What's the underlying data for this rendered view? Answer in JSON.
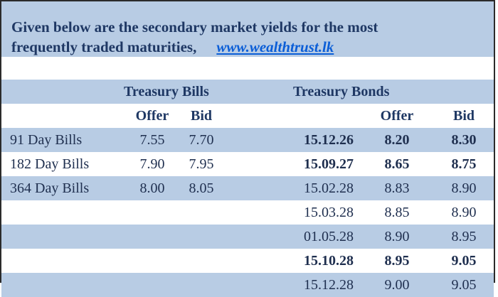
{
  "header": {
    "line1": "Given below are the secondary market yields for the most",
    "line2": "frequently traded maturities,",
    "link": "www.wealthtrust.lk"
  },
  "groups": {
    "bills": "Treasury Bills",
    "bonds": "Treasury Bonds"
  },
  "columns": {
    "bills_offer": "Offer",
    "bills_bid": "Bid",
    "bonds_offer": "Offer",
    "bonds_bid": "Bid"
  },
  "rows": [
    {
      "bill": "91 Day Bills",
      "bill_offer": "7.55",
      "bill_bid": "7.70",
      "bond": "15.12.26",
      "bond_offer": "8.20",
      "bond_bid": "8.30"
    },
    {
      "bill": "182 Day Bills",
      "bill_offer": "7.90",
      "bill_bid": "7.95",
      "bond": "15.09.27",
      "bond_offer": "8.65",
      "bond_bid": "8.75"
    },
    {
      "bill": "364 Day Bills",
      "bill_offer": "8.00",
      "bill_bid": "8.05",
      "bond": "15.02.28",
      "bond_offer": "8.83",
      "bond_bid": "8.90"
    },
    {
      "bill": "",
      "bill_offer": "",
      "bill_bid": "",
      "bond": "15.03.28",
      "bond_offer": "8.85",
      "bond_bid": "8.90"
    },
    {
      "bill": "",
      "bill_offer": "",
      "bill_bid": "",
      "bond": "01.05.28",
      "bond_offer": "8.90",
      "bond_bid": "8.95"
    },
    {
      "bill": "",
      "bill_offer": "",
      "bill_bid": "",
      "bond": "15.10.28",
      "bond_offer": "8.95",
      "bond_bid": "9.05"
    },
    {
      "bill": "",
      "bill_offer": "",
      "bill_bid": "",
      "bond": "15.12.28",
      "bond_offer": "9.00",
      "bond_bid": "9.05"
    }
  ]
}
